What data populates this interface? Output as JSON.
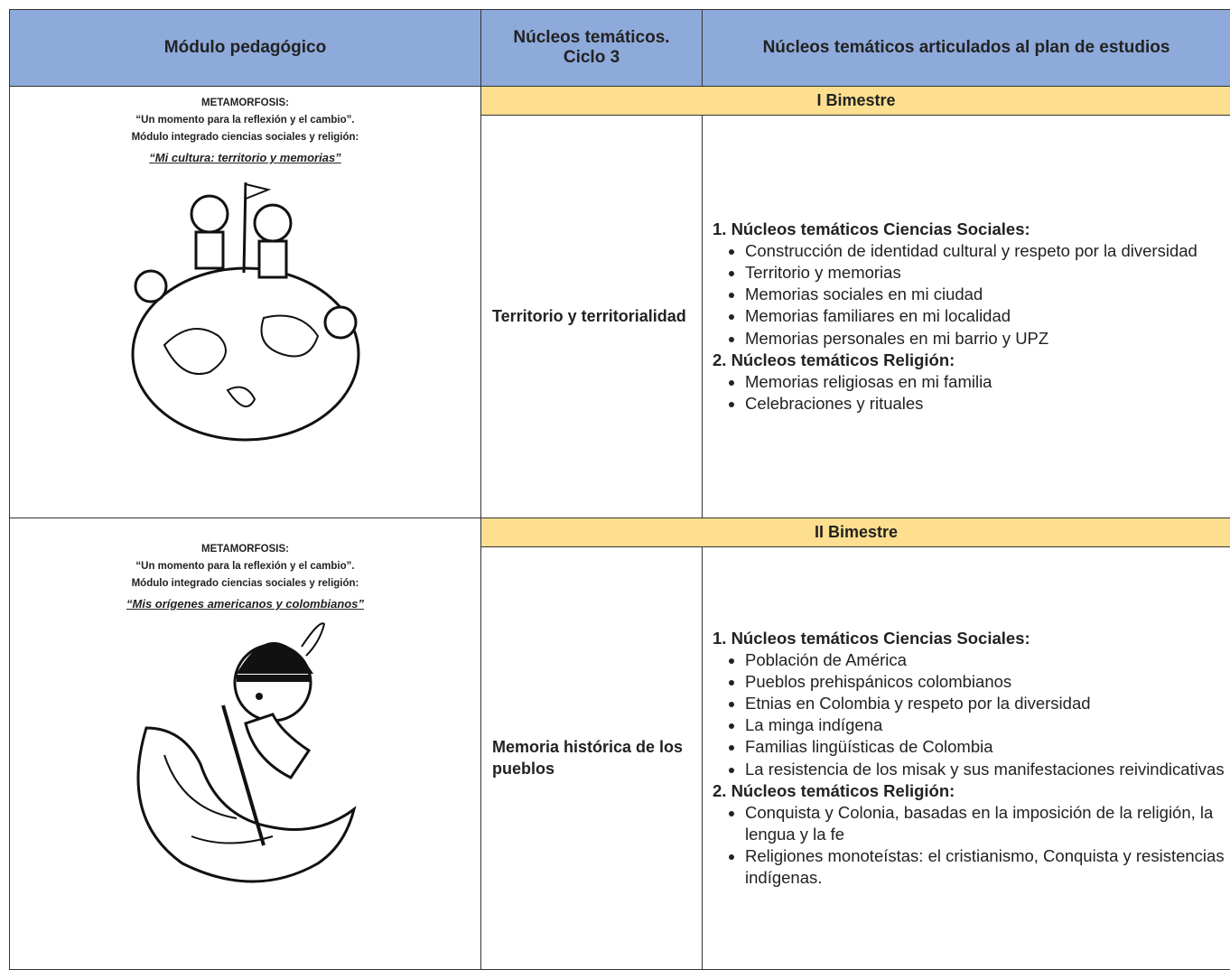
{
  "table": {
    "headers": [
      [
        "Módulo pedagógico"
      ],
      [
        "Núcleos temáticos.",
        "Ciclo 3"
      ],
      [
        "Núcleos temáticos articulados al plan de estudios"
      ]
    ],
    "rows": [
      {
        "module": {
          "lines": [
            "METAMORFOSIS:",
            "“Un momento para la reflexión y el cambio”.",
            "Módulo integrado ciencias sociales y religión:"
          ],
          "title": "“Mi cultura: territorio y memorias”"
        },
        "period": "I Bimestre",
        "core": "Territorio y territorialidad",
        "groups": [
          {
            "heading": "1. Núcleos temáticos Ciencias Sociales:",
            "items": [
              "Construcción de identidad cultural y respeto por la diversidad",
              "Territorio y memorias",
              "Memorias sociales en mi ciudad",
              "Memorias familiares en mi localidad",
              "Memorias personales en mi barrio y UPZ"
            ]
          },
          {
            "heading": "2. Núcleos temáticos Religión:",
            "items": [
              "Memorias religiosas en mi familia",
              "Celebraciones y rituales"
            ]
          }
        ]
      },
      {
        "module": {
          "lines": [
            "METAMORFOSIS:",
            "“Un momento para la reflexión y el cambio”.",
            "Módulo integrado ciencias sociales y religión:"
          ],
          "title": "“Mis orígenes americanos y colombianos”"
        },
        "period": "II Bimestre",
        "core": "Memoria histórica de los pueblos",
        "groups": [
          {
            "heading": "1. Núcleos temáticos Ciencias Sociales:",
            "items": [
              "Población de América",
              "Pueblos prehispánicos colombianos",
              "Etnias en Colombia y respeto por la diversidad",
              "La minga indígena",
              "Familias lingüísticas de Colombia",
              "La resistencia de los misak y sus manifestaciones reivindicativas"
            ]
          },
          {
            "heading": "2. Núcleos temáticos Religión:",
            "items": [
              "Conquista y Colonia, basadas en la imposición de la religión, la lengua y la fe",
              "Religiones monoteístas: el cristianismo, Conquista y resistencias indígenas."
            ]
          }
        ]
      }
    ]
  }
}
